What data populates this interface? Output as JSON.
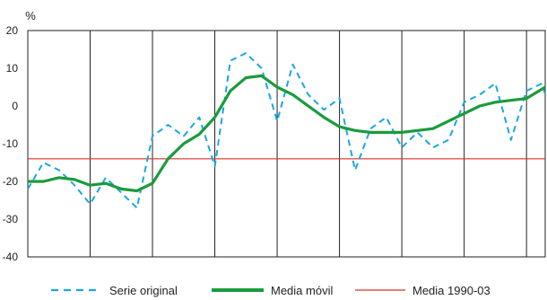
{
  "chart_data": {
    "type": "line",
    "unit_label": "%",
    "ylim": [
      -40,
      20
    ],
    "yticks": [
      20,
      10,
      0,
      -10,
      -20,
      -30,
      -40
    ],
    "ytick_labels": [
      "20",
      "10",
      "0",
      "-10",
      "-20",
      "-30",
      "-40"
    ],
    "x_range": [
      0,
      8.3
    ],
    "x_separators": [
      1,
      2,
      3,
      4,
      5,
      6,
      7,
      8
    ],
    "grid": "vertical-separators",
    "legend_position": "bottom",
    "series": [
      {
        "name": "Serie original",
        "style": "dashed",
        "color": "#1aa7e0",
        "x": [
          0.0,
          0.25,
          0.5,
          0.75,
          1.0,
          1.25,
          1.5,
          1.75,
          2.0,
          2.25,
          2.5,
          2.75,
          3.0,
          3.25,
          3.5,
          3.75,
          4.0,
          4.25,
          4.5,
          4.75,
          5.0,
          5.25,
          5.5,
          5.75,
          6.0,
          6.25,
          6.5,
          6.75,
          7.0,
          7.25,
          7.5,
          7.75,
          8.0,
          8.25,
          8.3
        ],
        "values": [
          -22,
          -15,
          -17,
          -21,
          -26,
          -19,
          -23,
          -27,
          -8,
          -5,
          -8,
          -3,
          -16,
          12,
          14,
          10,
          -4,
          11,
          3,
          -1,
          2,
          -17,
          -6,
          -3,
          -11,
          -7,
          -11,
          -9,
          1,
          3,
          6,
          -9,
          4,
          6,
          3
        ]
      },
      {
        "name": "Media móvil",
        "style": "solid-thick",
        "color": "#1a9b3c",
        "x": [
          0.0,
          0.25,
          0.5,
          0.75,
          1.0,
          1.25,
          1.5,
          1.75,
          2.0,
          2.25,
          2.5,
          2.75,
          3.0,
          3.25,
          3.5,
          3.75,
          4.0,
          4.25,
          4.5,
          4.75,
          5.0,
          5.25,
          5.5,
          5.75,
          6.0,
          6.25,
          6.5,
          6.75,
          7.0,
          7.25,
          7.5,
          7.75,
          8.0,
          8.25,
          8.3
        ],
        "values": [
          -20,
          -20,
          -19,
          -19.5,
          -21,
          -20.5,
          -22,
          -22.5,
          -20.5,
          -14,
          -10,
          -7.5,
          -3,
          4,
          7.5,
          8,
          5,
          3,
          0,
          -3,
          -5.5,
          -6.5,
          -7,
          -7,
          -7,
          -6.5,
          -6,
          -4,
          -2,
          0,
          1,
          1.5,
          2,
          4.5,
          5
        ]
      },
      {
        "name": "Media 1990-03",
        "style": "solid-thin",
        "color": "#d9302c",
        "x": [
          0.0,
          8.3
        ],
        "values": [
          -14,
          -14
        ]
      }
    ]
  },
  "legend": {
    "items": [
      {
        "label": "Serie original"
      },
      {
        "label": "Media móvil"
      },
      {
        "label": "Media 1990-03"
      }
    ]
  }
}
